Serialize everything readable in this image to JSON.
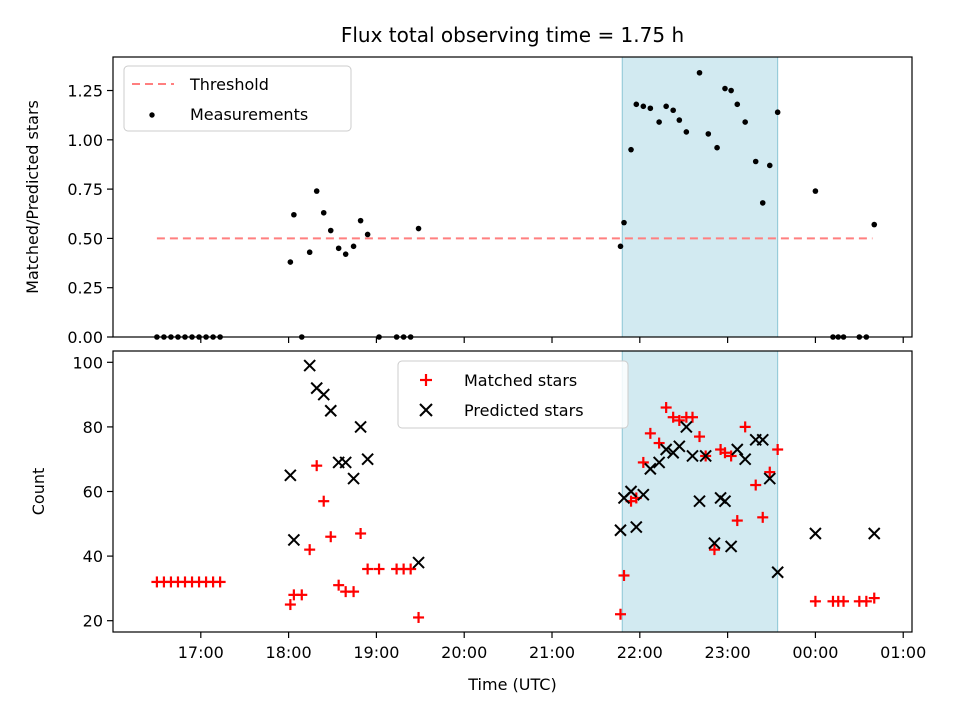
{
  "chart_data": [
    {
      "type": "scatter",
      "title": "Flux total observing time = 1.75 h",
      "xlabel": "",
      "ylabel": "Matched/Predicted stars",
      "x_unit": "hours (UTC, 24+ = next day)",
      "xlim": [
        16.0,
        25.1
      ],
      "ylim": [
        0.0,
        1.42
      ],
      "yticks": [
        0.0,
        0.25,
        0.5,
        0.75,
        1.0,
        1.25
      ],
      "yticklabels": [
        "0.00",
        "0.25",
        "0.50",
        "0.75",
        "1.00",
        "1.25"
      ],
      "shaded_region": [
        21.8,
        23.57
      ],
      "threshold": {
        "name": "Threshold",
        "y": 0.5,
        "x_range": [
          16.5,
          24.65
        ],
        "color": "#ff7f7f"
      },
      "series": [
        {
          "name": "Measurements",
          "color": "#000000",
          "marker": "dot",
          "x": [
            16.5,
            16.58,
            16.66,
            16.74,
            16.82,
            16.9,
            16.98,
            17.06,
            17.14,
            17.22,
            18.02,
            18.06,
            18.15,
            18.24,
            18.32,
            18.4,
            18.48,
            18.57,
            18.65,
            18.74,
            18.82,
            18.9,
            19.03,
            19.23,
            19.31,
            19.39,
            19.48,
            21.78,
            21.82,
            21.9,
            21.96,
            22.04,
            22.12,
            22.22,
            22.3,
            22.38,
            22.45,
            22.53,
            22.68,
            22.78,
            22.88,
            22.97,
            23.04,
            23.11,
            23.2,
            23.32,
            23.4,
            23.48,
            23.57,
            24.0,
            24.2,
            24.26,
            24.32,
            24.5,
            24.58,
            24.67
          ],
          "y": [
            0,
            0,
            0,
            0,
            0,
            0,
            0,
            0,
            0,
            0,
            0.38,
            0.62,
            0,
            0.43,
            0.74,
            0.63,
            0.54,
            0.45,
            0.42,
            0.46,
            0.59,
            0.52,
            0,
            0,
            0,
            0,
            0.55,
            0.46,
            0.58,
            0.95,
            1.18,
            1.17,
            1.16,
            1.09,
            1.17,
            1.15,
            1.1,
            1.04,
            1.34,
            1.03,
            0.96,
            1.26,
            1.25,
            1.18,
            1.09,
            0.89,
            0.68,
            0.87,
            1.14,
            0.74,
            0,
            0,
            0,
            0,
            0,
            0.57
          ]
        }
      ]
    },
    {
      "type": "scatter",
      "title": "",
      "xlabel": "Time (UTC)",
      "ylabel": "Count",
      "x_unit": "hours (UTC, 24+ = next day)",
      "xlim": [
        16.0,
        25.1
      ],
      "ylim": [
        16.5,
        103.5
      ],
      "xticks": [
        17,
        18,
        19,
        20,
        21,
        22,
        23,
        24,
        25
      ],
      "xticklabels": [
        "17:00",
        "18:00",
        "19:00",
        "20:00",
        "21:00",
        "22:00",
        "23:00",
        "00:00",
        "01:00"
      ],
      "yticks": [
        20,
        40,
        60,
        80,
        100
      ],
      "yticklabels": [
        "20",
        "40",
        "60",
        "80",
        "100"
      ],
      "shaded_region": [
        21.8,
        23.57
      ],
      "series": [
        {
          "name": "Matched stars",
          "color": "#ff0000",
          "marker": "plus",
          "x": [
            16.5,
            16.58,
            16.66,
            16.74,
            16.82,
            16.9,
            16.98,
            17.06,
            17.14,
            17.22,
            18.02,
            18.06,
            18.15,
            18.24,
            18.32,
            18.4,
            18.48,
            18.57,
            18.65,
            18.74,
            18.82,
            18.9,
            19.03,
            19.23,
            19.31,
            19.39,
            19.48,
            21.78,
            21.82,
            21.9,
            21.96,
            22.04,
            22.12,
            22.22,
            22.3,
            22.38,
            22.45,
            22.53,
            22.6,
            22.68,
            22.75,
            22.85,
            22.92,
            22.97,
            23.04,
            23.11,
            23.2,
            23.32,
            23.4,
            23.48,
            23.57,
            24.0,
            24.2,
            24.26,
            24.32,
            24.5,
            24.58,
            24.67
          ],
          "y": [
            32,
            32,
            32,
            32,
            32,
            32,
            32,
            32,
            32,
            32,
            25,
            28,
            28,
            42,
            68,
            57,
            46,
            31,
            29,
            29,
            47,
            36,
            36,
            36,
            36,
            36,
            21,
            22,
            34,
            57,
            58,
            69,
            78,
            75,
            86,
            83,
            82,
            83,
            83,
            77,
            71,
            42,
            73,
            72,
            71,
            51,
            80,
            62,
            52,
            66,
            73,
            26,
            26,
            26,
            26,
            26,
            26,
            27
          ]
        },
        {
          "name": "Predicted stars",
          "color": "#000000",
          "marker": "x",
          "x": [
            18.02,
            18.06,
            18.24,
            18.32,
            18.4,
            18.48,
            18.57,
            18.65,
            18.74,
            18.82,
            18.9,
            19.48,
            21.78,
            21.82,
            21.9,
            21.96,
            22.04,
            22.12,
            22.22,
            22.3,
            22.38,
            22.45,
            22.53,
            22.6,
            22.68,
            22.75,
            22.85,
            22.92,
            22.97,
            23.04,
            23.11,
            23.2,
            23.32,
            23.4,
            23.48,
            23.57,
            24.0,
            24.67
          ],
          "y": [
            65,
            45,
            99,
            92,
            90,
            85,
            69,
            69,
            64,
            80,
            70,
            38,
            48,
            58,
            60,
            49,
            59,
            67,
            69,
            73,
            72,
            74,
            80,
            71,
            57,
            71,
            44,
            58,
            57,
            43,
            73,
            70,
            76,
            76,
            64,
            35,
            47,
            47
          ]
        }
      ]
    }
  ],
  "legend_top": {
    "threshold_label": "Threshold",
    "measurements_label": "Measurements"
  },
  "legend_bottom": {
    "matched_label": "Matched stars",
    "predicted_label": "Predicted stars"
  }
}
